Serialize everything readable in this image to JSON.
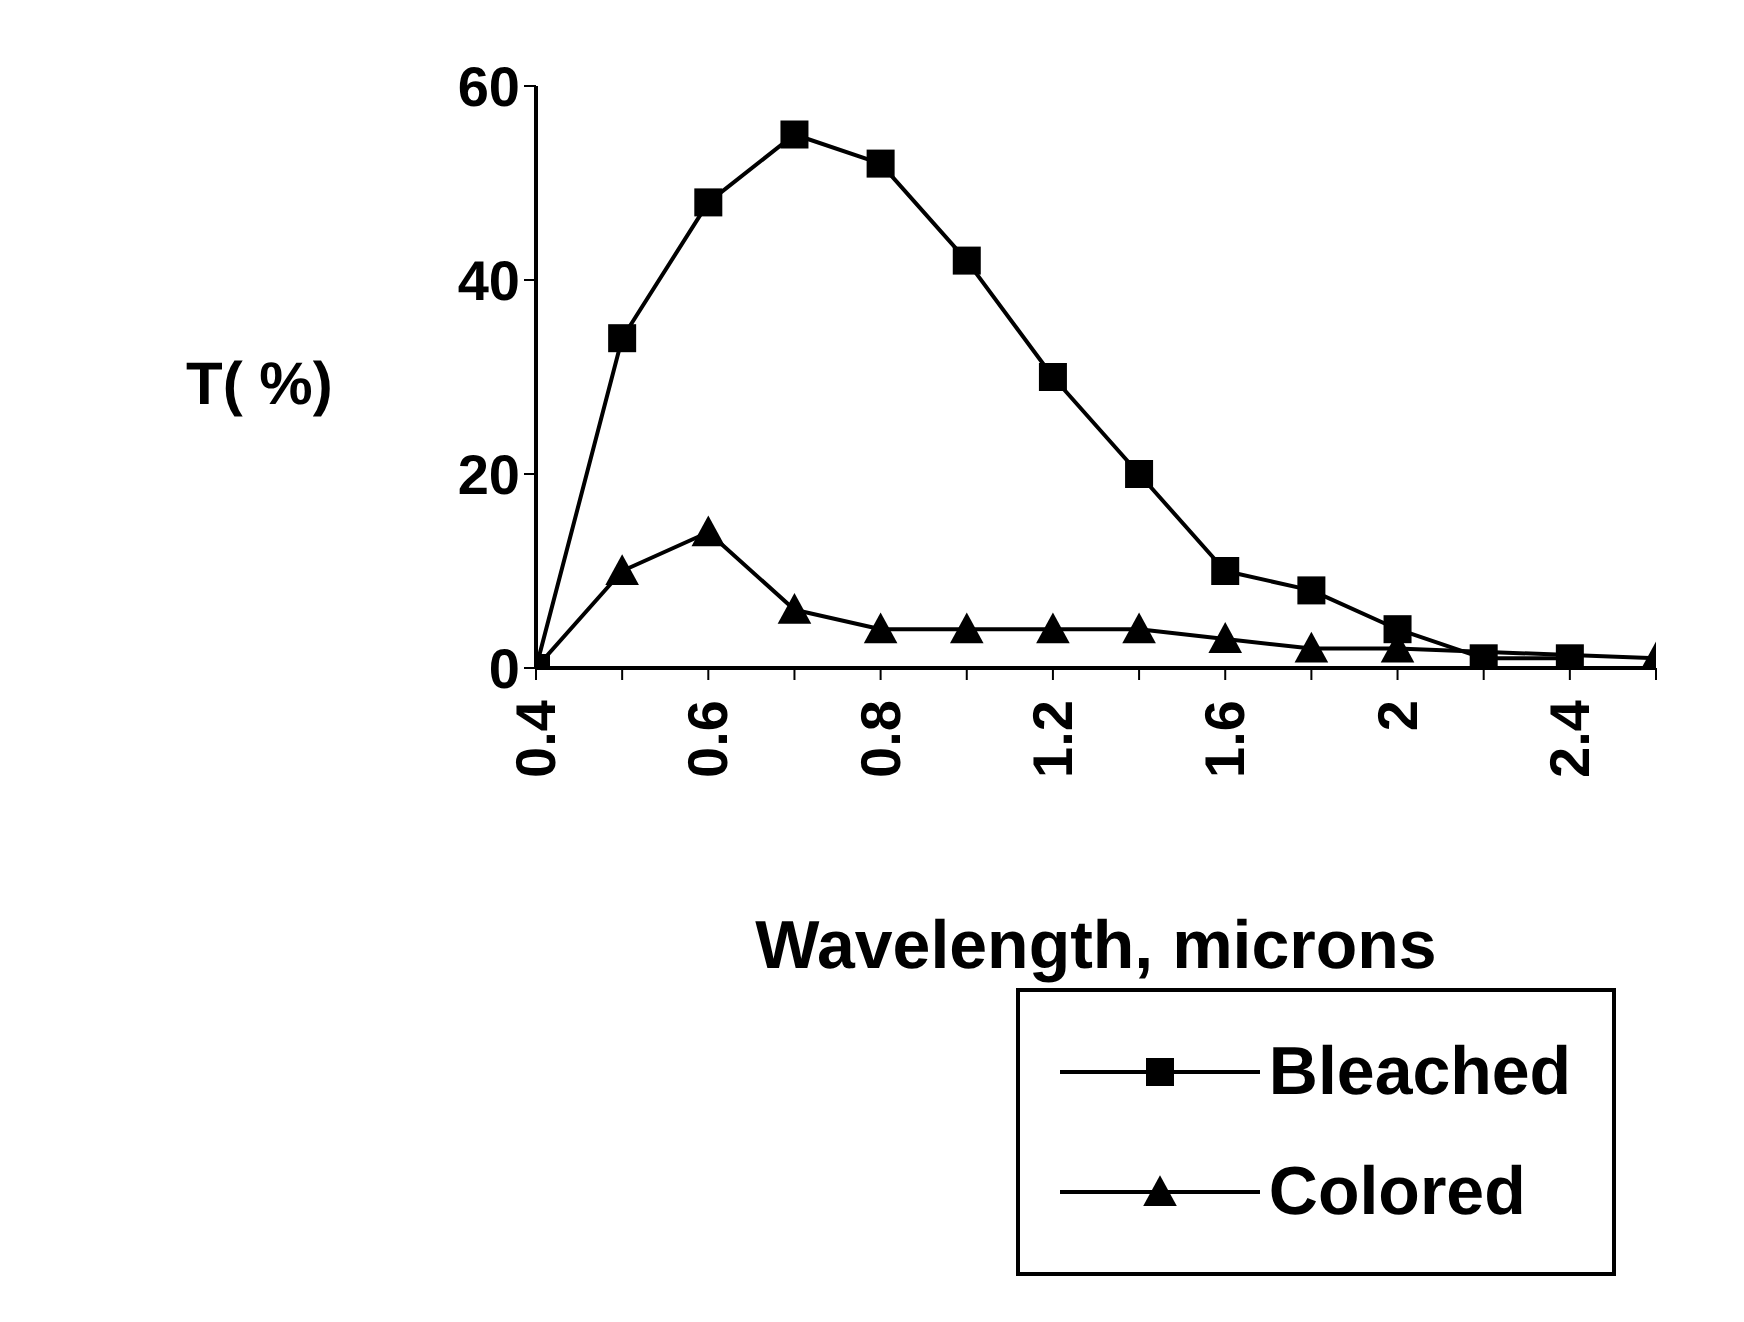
{
  "chart_data": {
    "type": "line",
    "xlabel": "Wavelength, microns",
    "ylabel": "T( %)",
    "categories": [
      "0.4",
      null,
      "0.6",
      null,
      "0.8",
      null,
      "1.2",
      null,
      "1.6",
      null,
      "2",
      null,
      "2.4",
      null
    ],
    "series": [
      {
        "name": "Bleached",
        "color": "#000000",
        "marker": "square",
        "values": [
          0,
          34,
          48,
          55,
          52,
          42,
          30,
          20,
          10,
          8,
          4,
          1,
          1,
          null
        ]
      },
      {
        "name": "Colored",
        "color": "#000000",
        "marker": "triangle",
        "values": [
          0,
          10,
          14,
          6,
          4,
          4,
          4,
          4,
          3,
          2,
          2,
          null,
          null,
          1
        ]
      }
    ],
    "ylim": [
      0,
      60
    ],
    "yticks": [
      0,
      20,
      40,
      60
    ],
    "legend": "bottom"
  }
}
